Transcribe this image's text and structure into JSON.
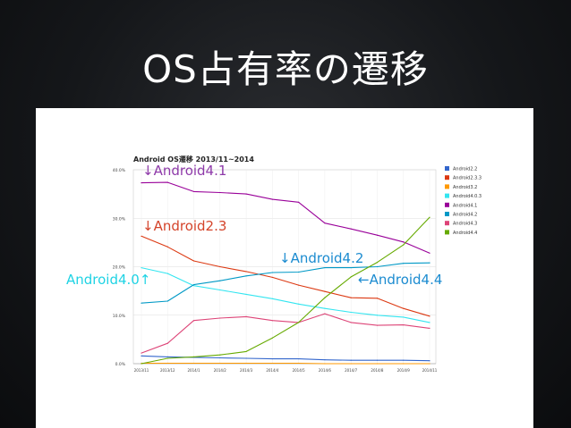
{
  "slide": {
    "title": "OS占有率の遷移"
  },
  "annotations": {
    "a41": {
      "text": "↓Android4.1",
      "color": "#8e3aa9"
    },
    "a23": {
      "text": "↓Android2.3",
      "color": "#d4442b"
    },
    "a42": {
      "text": "↓Android4.2",
      "color": "#1b8bd0"
    },
    "a40": {
      "text": "Android4.0↑",
      "color": "#1fd3e4"
    },
    "a44": {
      "text": "←Android4.4",
      "color": "#1b8bd0"
    }
  },
  "chart_data": {
    "type": "line",
    "title": "Android OS遷移 2013/11~2014",
    "xlabel": "",
    "ylabel": "",
    "ylim": [
      0,
      40
    ],
    "y_ticks": [
      "0.0%",
      "10.0%",
      "20.0%",
      "30.0%",
      "40.0%"
    ],
    "grid": true,
    "legend_position": "right",
    "x": [
      "2013/11",
      "2013/12",
      "2014/1",
      "2014/2",
      "2014/3",
      "2014/4",
      "2014/5",
      "2014/6",
      "2014/7",
      "2014/8",
      "2014/9",
      "2014/11"
    ],
    "series": [
      {
        "name": "Android2.2",
        "color": "#3366cc",
        "values": [
          1.6,
          1.4,
          1.3,
          1.2,
          1.1,
          1.0,
          1.0,
          0.8,
          0.7,
          0.7,
          0.7,
          0.6
        ]
      },
      {
        "name": "Android2.3.3",
        "color": "#dc3912",
        "values": [
          26.3,
          24.1,
          21.2,
          20.0,
          19.0,
          17.8,
          16.2,
          14.9,
          13.6,
          13.5,
          11.4,
          9.8
        ]
      },
      {
        "name": "Android3.2",
        "color": "#ff9900",
        "values": [
          0.1,
          0.1,
          0.1,
          0.1,
          0.1,
          0.1,
          0.1,
          0.0,
          0.0,
          0.0,
          0.0,
          0.0
        ]
      },
      {
        "name": "Android4.0.3",
        "color": "#33e5f0",
        "values": [
          19.8,
          18.6,
          16.1,
          15.2,
          14.3,
          13.4,
          12.3,
          11.4,
          10.6,
          10.0,
          9.6,
          8.5
        ]
      },
      {
        "name": "Android4.1",
        "color": "#990099",
        "values": [
          37.3,
          37.4,
          35.5,
          35.3,
          35.0,
          33.9,
          33.3,
          29.0,
          27.8,
          26.5,
          25.1,
          22.8
        ]
      },
      {
        "name": "Android4.2",
        "color": "#0099c6",
        "values": [
          12.5,
          12.9,
          16.3,
          17.1,
          18.1,
          18.8,
          18.9,
          19.8,
          19.8,
          20.0,
          20.7,
          20.8
        ]
      },
      {
        "name": "Android4.3",
        "color": "#dd4477",
        "values": [
          2.2,
          4.2,
          8.9,
          9.4,
          9.7,
          8.9,
          8.5,
          10.3,
          8.5,
          7.9,
          8.0,
          7.3
        ]
      },
      {
        "name": "Android4.4",
        "color": "#66aa00",
        "values": [
          0.0,
          1.1,
          1.4,
          1.8,
          2.5,
          5.3,
          8.5,
          13.6,
          17.9,
          20.9,
          24.5,
          30.2
        ]
      }
    ]
  }
}
